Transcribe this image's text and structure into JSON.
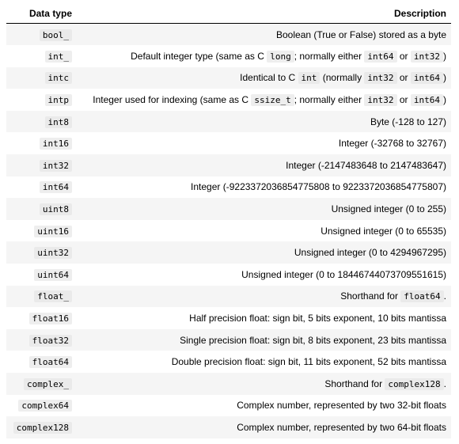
{
  "header": {
    "col_type": "Data type",
    "col_desc": "Description"
  },
  "rows": [
    {
      "type": "bool_",
      "desc": [
        {
          "t": "Boolean (True or False) stored as a byte"
        }
      ]
    },
    {
      "type": "int_",
      "desc": [
        {
          "t": "Default integer type (same as C "
        },
        {
          "c": "long"
        },
        {
          "t": "; normally either "
        },
        {
          "c": "int64"
        },
        {
          "t": " or "
        },
        {
          "c": "int32"
        },
        {
          "t": ")"
        }
      ]
    },
    {
      "type": "intc",
      "desc": [
        {
          "t": "Identical to C "
        },
        {
          "c": "int"
        },
        {
          "t": " (normally "
        },
        {
          "c": "int32"
        },
        {
          "t": " or "
        },
        {
          "c": "int64"
        },
        {
          "t": ")"
        }
      ]
    },
    {
      "type": "intp",
      "desc": [
        {
          "t": "Integer used for indexing (same as C "
        },
        {
          "c": "ssize_t"
        },
        {
          "t": "; normally either "
        },
        {
          "c": "int32"
        },
        {
          "t": " or "
        },
        {
          "c": "int64"
        },
        {
          "t": ")"
        }
      ]
    },
    {
      "type": "int8",
      "desc": [
        {
          "t": "Byte (-128 to 127)"
        }
      ]
    },
    {
      "type": "int16",
      "desc": [
        {
          "t": "Integer (-32768 to 32767)"
        }
      ]
    },
    {
      "type": "int32",
      "desc": [
        {
          "t": "Integer (-2147483648 to 2147483647)"
        }
      ]
    },
    {
      "type": "int64",
      "desc": [
        {
          "t": "Integer (-9223372036854775808 to 9223372036854775807)"
        }
      ]
    },
    {
      "type": "uint8",
      "desc": [
        {
          "t": "Unsigned integer (0 to 255)"
        }
      ]
    },
    {
      "type": "uint16",
      "desc": [
        {
          "t": "Unsigned integer (0 to 65535)"
        }
      ]
    },
    {
      "type": "uint32",
      "desc": [
        {
          "t": "Unsigned integer (0 to 4294967295)"
        }
      ]
    },
    {
      "type": "uint64",
      "desc": [
        {
          "t": "Unsigned integer (0 to 18446744073709551615)"
        }
      ]
    },
    {
      "type": "float_",
      "desc": [
        {
          "t": "Shorthand for "
        },
        {
          "c": "float64"
        },
        {
          "t": "."
        }
      ]
    },
    {
      "type": "float16",
      "desc": [
        {
          "t": "Half precision float: sign bit, 5 bits exponent, 10 bits mantissa"
        }
      ]
    },
    {
      "type": "float32",
      "desc": [
        {
          "t": "Single precision float: sign bit, 8 bits exponent, 23 bits mantissa"
        }
      ]
    },
    {
      "type": "float64",
      "desc": [
        {
          "t": "Double precision float: sign bit, 11 bits exponent, 52 bits mantissa"
        }
      ]
    },
    {
      "type": "complex_",
      "desc": [
        {
          "t": "Shorthand for "
        },
        {
          "c": "complex128"
        },
        {
          "t": "."
        }
      ]
    },
    {
      "type": "complex64",
      "desc": [
        {
          "t": "Complex number, represented by two 32-bit floats"
        }
      ]
    },
    {
      "type": "complex128",
      "desc": [
        {
          "t": "Complex number, represented by two 64-bit floats"
        }
      ]
    }
  ]
}
